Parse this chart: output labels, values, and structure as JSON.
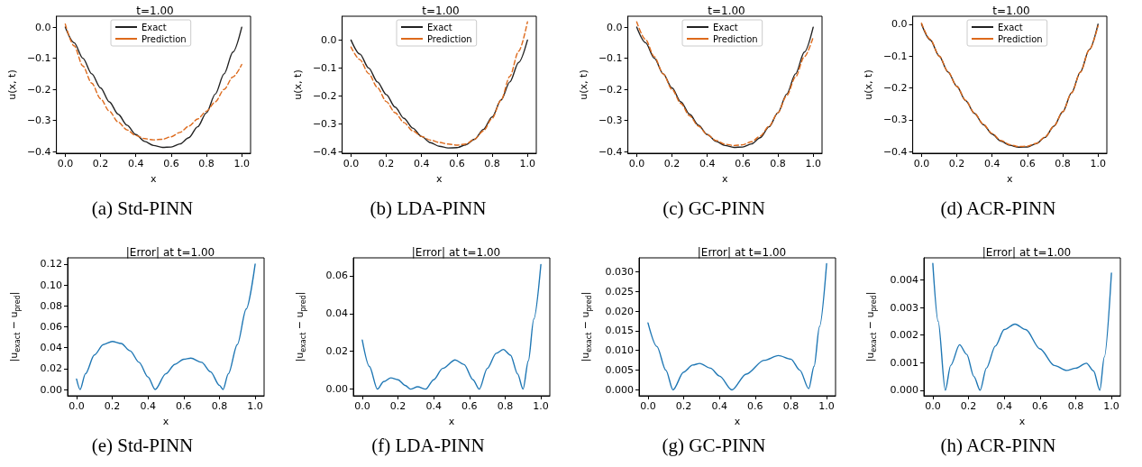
{
  "chart_data": [
    {
      "type": "line",
      "title": "t=1.00",
      "xlabel": "x",
      "ylabel": "u(x, t)",
      "annotations": [
        "(a) Std-PINN"
      ],
      "legend": "top",
      "grid": false,
      "xlim": [
        -0.05,
        1.05
      ],
      "xticks": [
        {
          "value": 0,
          "label": "0.0"
        },
        {
          "value": 0.2,
          "label": "0.2"
        },
        {
          "value": 0.4,
          "label": "0.4"
        },
        {
          "value": 0.6,
          "label": "0.6"
        },
        {
          "value": 0.8,
          "label": "0.8"
        },
        {
          "value": 1,
          "label": "1.0"
        }
      ],
      "ylim": [
        -0.405,
        0.035
      ],
      "yticks": [
        {
          "value": -0.4,
          "label": "−0.4"
        },
        {
          "value": -0.3,
          "label": "−0.3"
        },
        {
          "value": -0.2,
          "label": "−0.2"
        },
        {
          "value": -0.1,
          "label": "−0.1"
        },
        {
          "value": 0,
          "label": "0.0"
        }
      ],
      "series": [
        {
          "name": "Exact",
          "color": "#222222",
          "line_style": "solid",
          "x": [
            0,
            0.05,
            0.1,
            0.15,
            0.2,
            0.25,
            0.3,
            0.35,
            0.4,
            0.45,
            0.5,
            0.55,
            0.6,
            0.65,
            0.7,
            0.75,
            0.8,
            0.85,
            0.9,
            0.95,
            1
          ],
          "values": [
            0,
            -0.05,
            -0.1,
            -0.15,
            -0.195,
            -0.24,
            -0.28,
            -0.315,
            -0.345,
            -0.367,
            -0.38,
            -0.386,
            -0.385,
            -0.375,
            -0.355,
            -0.32,
            -0.275,
            -0.215,
            -0.15,
            -0.08,
            0
          ]
        },
        {
          "name": "Prediction",
          "color": "#dd6a1c",
          "line_style": "dashed",
          "x": [
            0,
            0.05,
            0.1,
            0.15,
            0.2,
            0.25,
            0.3,
            0.35,
            0.4,
            0.45,
            0.5,
            0.55,
            0.6,
            0.65,
            0.7,
            0.75,
            0.8,
            0.85,
            0.9,
            0.95,
            1
          ],
          "values": [
            0.01,
            -0.06,
            -0.125,
            -0.18,
            -0.23,
            -0.27,
            -0.305,
            -0.33,
            -0.348,
            -0.358,
            -0.362,
            -0.36,
            -0.352,
            -0.338,
            -0.318,
            -0.295,
            -0.27,
            -0.24,
            -0.2,
            -0.16,
            -0.12
          ]
        }
      ]
    },
    {
      "type": "line",
      "title": "t=1.00",
      "xlabel": "x",
      "ylabel": "u(x, t)",
      "annotations": [
        "(b) LDA-PINN"
      ],
      "legend": "top",
      "grid": false,
      "xlim": [
        -0.05,
        1.05
      ],
      "xticks": [
        {
          "value": 0,
          "label": "0.0"
        },
        {
          "value": 0.2,
          "label": "0.2"
        },
        {
          "value": 0.4,
          "label": "0.4"
        },
        {
          "value": 0.6,
          "label": "0.6"
        },
        {
          "value": 0.8,
          "label": "0.8"
        },
        {
          "value": 1,
          "label": "1.0"
        }
      ],
      "ylim": [
        -0.405,
        0.085
      ],
      "yticks": [
        {
          "value": -0.4,
          "label": "−0.4"
        },
        {
          "value": -0.3,
          "label": "−0.3"
        },
        {
          "value": -0.2,
          "label": "−0.2"
        },
        {
          "value": -0.1,
          "label": "−0.1"
        },
        {
          "value": 0,
          "label": "0.0"
        }
      ],
      "series": [
        {
          "name": "Exact",
          "color": "#222222",
          "line_style": "solid",
          "x": [
            0,
            0.05,
            0.1,
            0.15,
            0.2,
            0.25,
            0.3,
            0.35,
            0.4,
            0.45,
            0.5,
            0.55,
            0.6,
            0.65,
            0.7,
            0.75,
            0.8,
            0.85,
            0.9,
            0.95,
            1
          ],
          "values": [
            0,
            -0.05,
            -0.1,
            -0.15,
            -0.195,
            -0.24,
            -0.28,
            -0.315,
            -0.345,
            -0.367,
            -0.38,
            -0.386,
            -0.385,
            -0.375,
            -0.355,
            -0.32,
            -0.275,
            -0.215,
            -0.15,
            -0.08,
            0
          ]
        },
        {
          "name": "Prediction",
          "color": "#dd6a1c",
          "line_style": "dashed",
          "x": [
            0,
            0.05,
            0.1,
            0.15,
            0.2,
            0.25,
            0.3,
            0.35,
            0.4,
            0.45,
            0.5,
            0.55,
            0.6,
            0.65,
            0.7,
            0.75,
            0.8,
            0.85,
            0.9,
            0.95,
            1
          ],
          "values": [
            -0.025,
            -0.07,
            -0.12,
            -0.17,
            -0.22,
            -0.26,
            -0.295,
            -0.325,
            -0.345,
            -0.358,
            -0.366,
            -0.372,
            -0.376,
            -0.372,
            -0.355,
            -0.325,
            -0.28,
            -0.215,
            -0.13,
            -0.04,
            0.065
          ]
        }
      ]
    },
    {
      "type": "line",
      "title": "t=1.00",
      "xlabel": "x",
      "ylabel": "u(x, t)",
      "annotations": [
        "(c) GC-PINN"
      ],
      "legend": "top",
      "grid": false,
      "xlim": [
        -0.05,
        1.05
      ],
      "xticks": [
        {
          "value": 0,
          "label": "0.0"
        },
        {
          "value": 0.2,
          "label": "0.2"
        },
        {
          "value": 0.4,
          "label": "0.4"
        },
        {
          "value": 0.6,
          "label": "0.6"
        },
        {
          "value": 0.8,
          "label": "0.8"
        },
        {
          "value": 1,
          "label": "1.0"
        }
      ],
      "ylim": [
        -0.405,
        0.035
      ],
      "yticks": [
        {
          "value": -0.4,
          "label": "−0.4"
        },
        {
          "value": -0.3,
          "label": "−0.3"
        },
        {
          "value": -0.2,
          "label": "−0.2"
        },
        {
          "value": -0.1,
          "label": "−0.1"
        },
        {
          "value": 0,
          "label": "0.0"
        }
      ],
      "series": [
        {
          "name": "Exact",
          "color": "#222222",
          "line_style": "solid",
          "x": [
            0,
            0.05,
            0.1,
            0.15,
            0.2,
            0.25,
            0.3,
            0.35,
            0.4,
            0.45,
            0.5,
            0.55,
            0.6,
            0.65,
            0.7,
            0.75,
            0.8,
            0.85,
            0.9,
            0.95,
            1
          ],
          "values": [
            0,
            -0.05,
            -0.1,
            -0.15,
            -0.195,
            -0.24,
            -0.28,
            -0.315,
            -0.345,
            -0.367,
            -0.38,
            -0.386,
            -0.385,
            -0.375,
            -0.355,
            -0.32,
            -0.275,
            -0.215,
            -0.15,
            -0.08,
            0
          ]
        },
        {
          "name": "Prediction",
          "color": "#dd6a1c",
          "line_style": "dashed",
          "x": [
            0,
            0.05,
            0.1,
            0.15,
            0.2,
            0.25,
            0.3,
            0.35,
            0.4,
            0.45,
            0.5,
            0.55,
            0.6,
            0.65,
            0.7,
            0.75,
            0.8,
            0.85,
            0.9,
            0.95,
            1
          ],
          "values": [
            0.017,
            -0.04,
            -0.095,
            -0.15,
            -0.2,
            -0.245,
            -0.285,
            -0.318,
            -0.345,
            -0.364,
            -0.376,
            -0.38,
            -0.378,
            -0.368,
            -0.35,
            -0.318,
            -0.275,
            -0.22,
            -0.16,
            -0.095,
            -0.032
          ]
        }
      ]
    },
    {
      "type": "line",
      "title": "t=1.00",
      "xlabel": "x",
      "ylabel": "u(x, t)",
      "annotations": [
        "(d) ACR-PINN"
      ],
      "legend": "top",
      "grid": false,
      "xlim": [
        -0.05,
        1.05
      ],
      "xticks": [
        {
          "value": 0,
          "label": "0.0"
        },
        {
          "value": 0.2,
          "label": "0.2"
        },
        {
          "value": 0.4,
          "label": "0.4"
        },
        {
          "value": 0.6,
          "label": "0.6"
        },
        {
          "value": 0.8,
          "label": "0.8"
        },
        {
          "value": 1,
          "label": "1.0"
        }
      ],
      "ylim": [
        -0.405,
        0.025
      ],
      "yticks": [
        {
          "value": -0.4,
          "label": "−0.4"
        },
        {
          "value": -0.3,
          "label": "−0.3"
        },
        {
          "value": -0.2,
          "label": "−0.2"
        },
        {
          "value": -0.1,
          "label": "−0.1"
        },
        {
          "value": 0,
          "label": "0.0"
        }
      ],
      "series": [
        {
          "name": "Exact",
          "color": "#222222",
          "line_style": "solid",
          "x": [
            0,
            0.05,
            0.1,
            0.15,
            0.2,
            0.25,
            0.3,
            0.35,
            0.4,
            0.45,
            0.5,
            0.55,
            0.6,
            0.65,
            0.7,
            0.75,
            0.8,
            0.85,
            0.9,
            0.95,
            1
          ],
          "values": [
            0,
            -0.05,
            -0.1,
            -0.15,
            -0.195,
            -0.24,
            -0.28,
            -0.315,
            -0.345,
            -0.367,
            -0.38,
            -0.386,
            -0.385,
            -0.375,
            -0.355,
            -0.32,
            -0.275,
            -0.215,
            -0.15,
            -0.08,
            0
          ]
        },
        {
          "name": "Prediction",
          "color": "#dd6a1c",
          "line_style": "dashed",
          "x": [
            0,
            0.05,
            0.1,
            0.15,
            0.2,
            0.25,
            0.3,
            0.35,
            0.4,
            0.45,
            0.5,
            0.55,
            0.6,
            0.65,
            0.7,
            0.75,
            0.8,
            0.85,
            0.9,
            0.95,
            1
          ],
          "values": [
            0.003,
            -0.048,
            -0.1,
            -0.149,
            -0.195,
            -0.239,
            -0.279,
            -0.314,
            -0.343,
            -0.365,
            -0.378,
            -0.384,
            -0.383,
            -0.374,
            -0.354,
            -0.32,
            -0.275,
            -0.216,
            -0.151,
            -0.081,
            -0.005
          ]
        }
      ]
    },
    {
      "type": "line",
      "title": "|Error| at t=1.00",
      "xlabel": "x",
      "ylabel": "|u$_{exact}$ − u$_{pred}$|",
      "annotations": [
        "(e) Std-PINN"
      ],
      "grid": false,
      "xlim": [
        -0.05,
        1.05
      ],
      "xticks": [
        {
          "value": 0,
          "label": "0.0"
        },
        {
          "value": 0.2,
          "label": "0.2"
        },
        {
          "value": 0.4,
          "label": "0.4"
        },
        {
          "value": 0.6,
          "label": "0.6"
        },
        {
          "value": 0.8,
          "label": "0.8"
        },
        {
          "value": 1,
          "label": "1.0"
        }
      ],
      "ylim": [
        -0.006,
        0.126
      ],
      "yticks": [
        {
          "value": 0,
          "label": "0.00"
        },
        {
          "value": 0.02,
          "label": "0.02"
        },
        {
          "value": 0.04,
          "label": "0.04"
        },
        {
          "value": 0.06,
          "label": "0.06"
        },
        {
          "value": 0.08,
          "label": "0.08"
        },
        {
          "value": 0.1,
          "label": "0.10"
        },
        {
          "value": 0.12,
          "label": "0.12"
        }
      ],
      "series": [
        {
          "color": "#1f77b4",
          "line_style": "solid",
          "x": [
            0,
            0.02,
            0.05,
            0.1,
            0.15,
            0.2,
            0.25,
            0.3,
            0.35,
            0.4,
            0.44,
            0.5,
            0.55,
            0.6,
            0.64,
            0.7,
            0.75,
            0.8,
            0.82,
            0.85,
            0.9,
            0.95,
            1
          ],
          "values": [
            0.01,
            0.0,
            0.015,
            0.033,
            0.043,
            0.046,
            0.044,
            0.037,
            0.026,
            0.012,
            0.0,
            0.015,
            0.024,
            0.029,
            0.03,
            0.026,
            0.017,
            0.004,
            0.0,
            0.015,
            0.043,
            0.077,
            0.12
          ]
        }
      ]
    },
    {
      "type": "line",
      "title": "|Error| at t=1.00",
      "xlabel": "x",
      "ylabel": "|u$_{exact}$ − u$_{pred}$|",
      "annotations": [
        "(f) LDA-PINN"
      ],
      "grid": false,
      "xlim": [
        -0.05,
        1.05
      ],
      "xticks": [
        {
          "value": 0,
          "label": "0.0"
        },
        {
          "value": 0.2,
          "label": "0.2"
        },
        {
          "value": 0.4,
          "label": "0.4"
        },
        {
          "value": 0.6,
          "label": "0.6"
        },
        {
          "value": 0.8,
          "label": "0.8"
        },
        {
          "value": 1,
          "label": "1.0"
        }
      ],
      "ylim": [
        -0.0035,
        0.0695
      ],
      "yticks": [
        {
          "value": 0,
          "label": "0.00"
        },
        {
          "value": 0.02,
          "label": "0.02"
        },
        {
          "value": 0.04,
          "label": "0.04"
        },
        {
          "value": 0.06,
          "label": "0.06"
        }
      ],
      "series": [
        {
          "color": "#1f77b4",
          "line_style": "solid",
          "x": [
            0,
            0.04,
            0.085,
            0.12,
            0.16,
            0.2,
            0.24,
            0.27,
            0.31,
            0.355,
            0.4,
            0.45,
            0.52,
            0.57,
            0.62,
            0.655,
            0.7,
            0.75,
            0.79,
            0.83,
            0.87,
            0.9,
            0.93,
            0.96,
            1
          ],
          "values": [
            0.026,
            0.012,
            0.0,
            0.004,
            0.006,
            0.005,
            0.002,
            0.0,
            0.0013,
            0.0,
            0.005,
            0.011,
            0.0155,
            0.013,
            0.005,
            0.0,
            0.011,
            0.019,
            0.021,
            0.018,
            0.008,
            0.0,
            0.015,
            0.037,
            0.066
          ]
        }
      ]
    },
    {
      "type": "line",
      "title": "|Error| at t=1.00",
      "xlabel": "x",
      "ylabel": "|u$_{exact}$ − u$_{pred}$|",
      "annotations": [
        "(g) GC-PINN"
      ],
      "grid": false,
      "xlim": [
        -0.05,
        1.05
      ],
      "xticks": [
        {
          "value": 0,
          "label": "0.0"
        },
        {
          "value": 0.2,
          "label": "0.2"
        },
        {
          "value": 0.4,
          "label": "0.4"
        },
        {
          "value": 0.6,
          "label": "0.6"
        },
        {
          "value": 0.8,
          "label": "0.8"
        },
        {
          "value": 1,
          "label": "1.0"
        }
      ],
      "ylim": [
        -0.0015,
        0.0335
      ],
      "yticks": [
        {
          "value": 0,
          "label": "0.000"
        },
        {
          "value": 0.005,
          "label": "0.005"
        },
        {
          "value": 0.01,
          "label": "0.010"
        },
        {
          "value": 0.015,
          "label": "0.015"
        },
        {
          "value": 0.02,
          "label": "0.020"
        },
        {
          "value": 0.025,
          "label": "0.025"
        },
        {
          "value": 0.03,
          "label": "0.030"
        }
      ],
      "series": [
        {
          "color": "#1f77b4",
          "line_style": "solid",
          "x": [
            0,
            0.05,
            0.1,
            0.14,
            0.2,
            0.25,
            0.29,
            0.35,
            0.4,
            0.47,
            0.55,
            0.65,
            0.73,
            0.8,
            0.85,
            0.9,
            0.93,
            0.96,
            1
          ],
          "values": [
            0.017,
            0.011,
            0.005,
            0.0,
            0.0045,
            0.0063,
            0.0067,
            0.0055,
            0.0035,
            0.0,
            0.004,
            0.0075,
            0.0087,
            0.0078,
            0.005,
            0.0003,
            0.006,
            0.016,
            0.032
          ]
        }
      ]
    },
    {
      "type": "line",
      "title": "|Error| at t=1.00",
      "xlabel": "x",
      "ylabel": "|u$_{exact}$ − u$_{pred}$|",
      "annotations": [
        "(h) ACR-PINN"
      ],
      "grid": false,
      "xlim": [
        -0.05,
        1.05
      ],
      "xticks": [
        {
          "value": 0,
          "label": "0.0"
        },
        {
          "value": 0.2,
          "label": "0.2"
        },
        {
          "value": 0.4,
          "label": "0.4"
        },
        {
          "value": 0.6,
          "label": "0.6"
        },
        {
          "value": 0.8,
          "label": "0.8"
        },
        {
          "value": 1,
          "label": "1.0"
        }
      ],
      "ylim": [
        -0.0002,
        0.0048
      ],
      "yticks": [
        {
          "value": 0,
          "label": "0.000"
        },
        {
          "value": 0.001,
          "label": "0.001"
        },
        {
          "value": 0.002,
          "label": "0.002"
        },
        {
          "value": 0.003,
          "label": "0.003"
        },
        {
          "value": 0.004,
          "label": "0.004"
        }
      ],
      "series": [
        {
          "color": "#1f77b4",
          "line_style": "solid",
          "x": [
            0,
            0.03,
            0.07,
            0.1,
            0.15,
            0.19,
            0.23,
            0.265,
            0.3,
            0.35,
            0.4,
            0.46,
            0.52,
            0.6,
            0.68,
            0.75,
            0.8,
            0.86,
            0.9,
            0.935,
            0.96,
            1
          ],
          "values": [
            0.0046,
            0.0025,
            0.0,
            0.0009,
            0.00165,
            0.0013,
            0.0005,
            0.0,
            0.0008,
            0.0016,
            0.0022,
            0.0024,
            0.0022,
            0.0015,
            0.0009,
            0.00072,
            0.0008,
            0.00098,
            0.0007,
            0.0,
            0.0012,
            0.00425
          ]
        }
      ]
    }
  ]
}
